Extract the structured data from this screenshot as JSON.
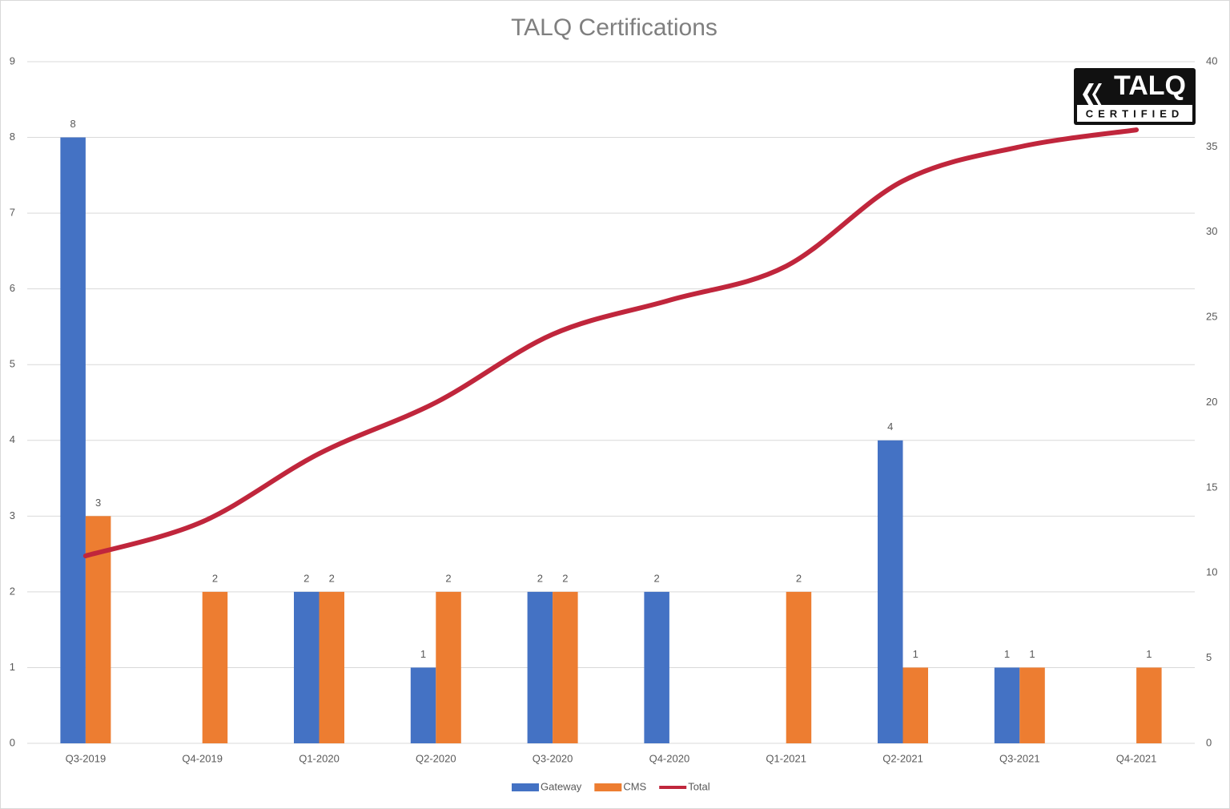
{
  "chart_data": {
    "type": "bar",
    "title": "TALQ Certifications",
    "categories": [
      "Q3-2019",
      "Q4-2019",
      "Q1-2020",
      "Q2-2020",
      "Q3-2020",
      "Q4-2020",
      "Q1-2021",
      "Q2-2021",
      "Q3-2021",
      "Q4-2021"
    ],
    "series": [
      {
        "name": "Gateway",
        "color": "#4472c4",
        "values": [
          8,
          null,
          2,
          1,
          2,
          2,
          null,
          4,
          1,
          null
        ]
      },
      {
        "name": "CMS",
        "color": "#ed7d31",
        "values": [
          3,
          2,
          2,
          2,
          2,
          null,
          2,
          1,
          1,
          1
        ]
      },
      {
        "name": "Total",
        "color": "#c0263c",
        "type": "line",
        "axis": "y2",
        "values": [
          11,
          13,
          17,
          20,
          24,
          26,
          28,
          33,
          35,
          36
        ]
      }
    ],
    "ylim": [
      0,
      9
    ],
    "yticks": [
      0,
      1,
      2,
      3,
      4,
      5,
      6,
      7,
      8,
      9
    ],
    "y2lim": [
      0,
      40
    ],
    "y2ticks": [
      0,
      5,
      10,
      15,
      20,
      25,
      30,
      35,
      40
    ],
    "grid": true,
    "legend": "bottom",
    "data_labels": true,
    "badge": {
      "text": "TALQ",
      "subtext": "CERTIFIED"
    }
  }
}
